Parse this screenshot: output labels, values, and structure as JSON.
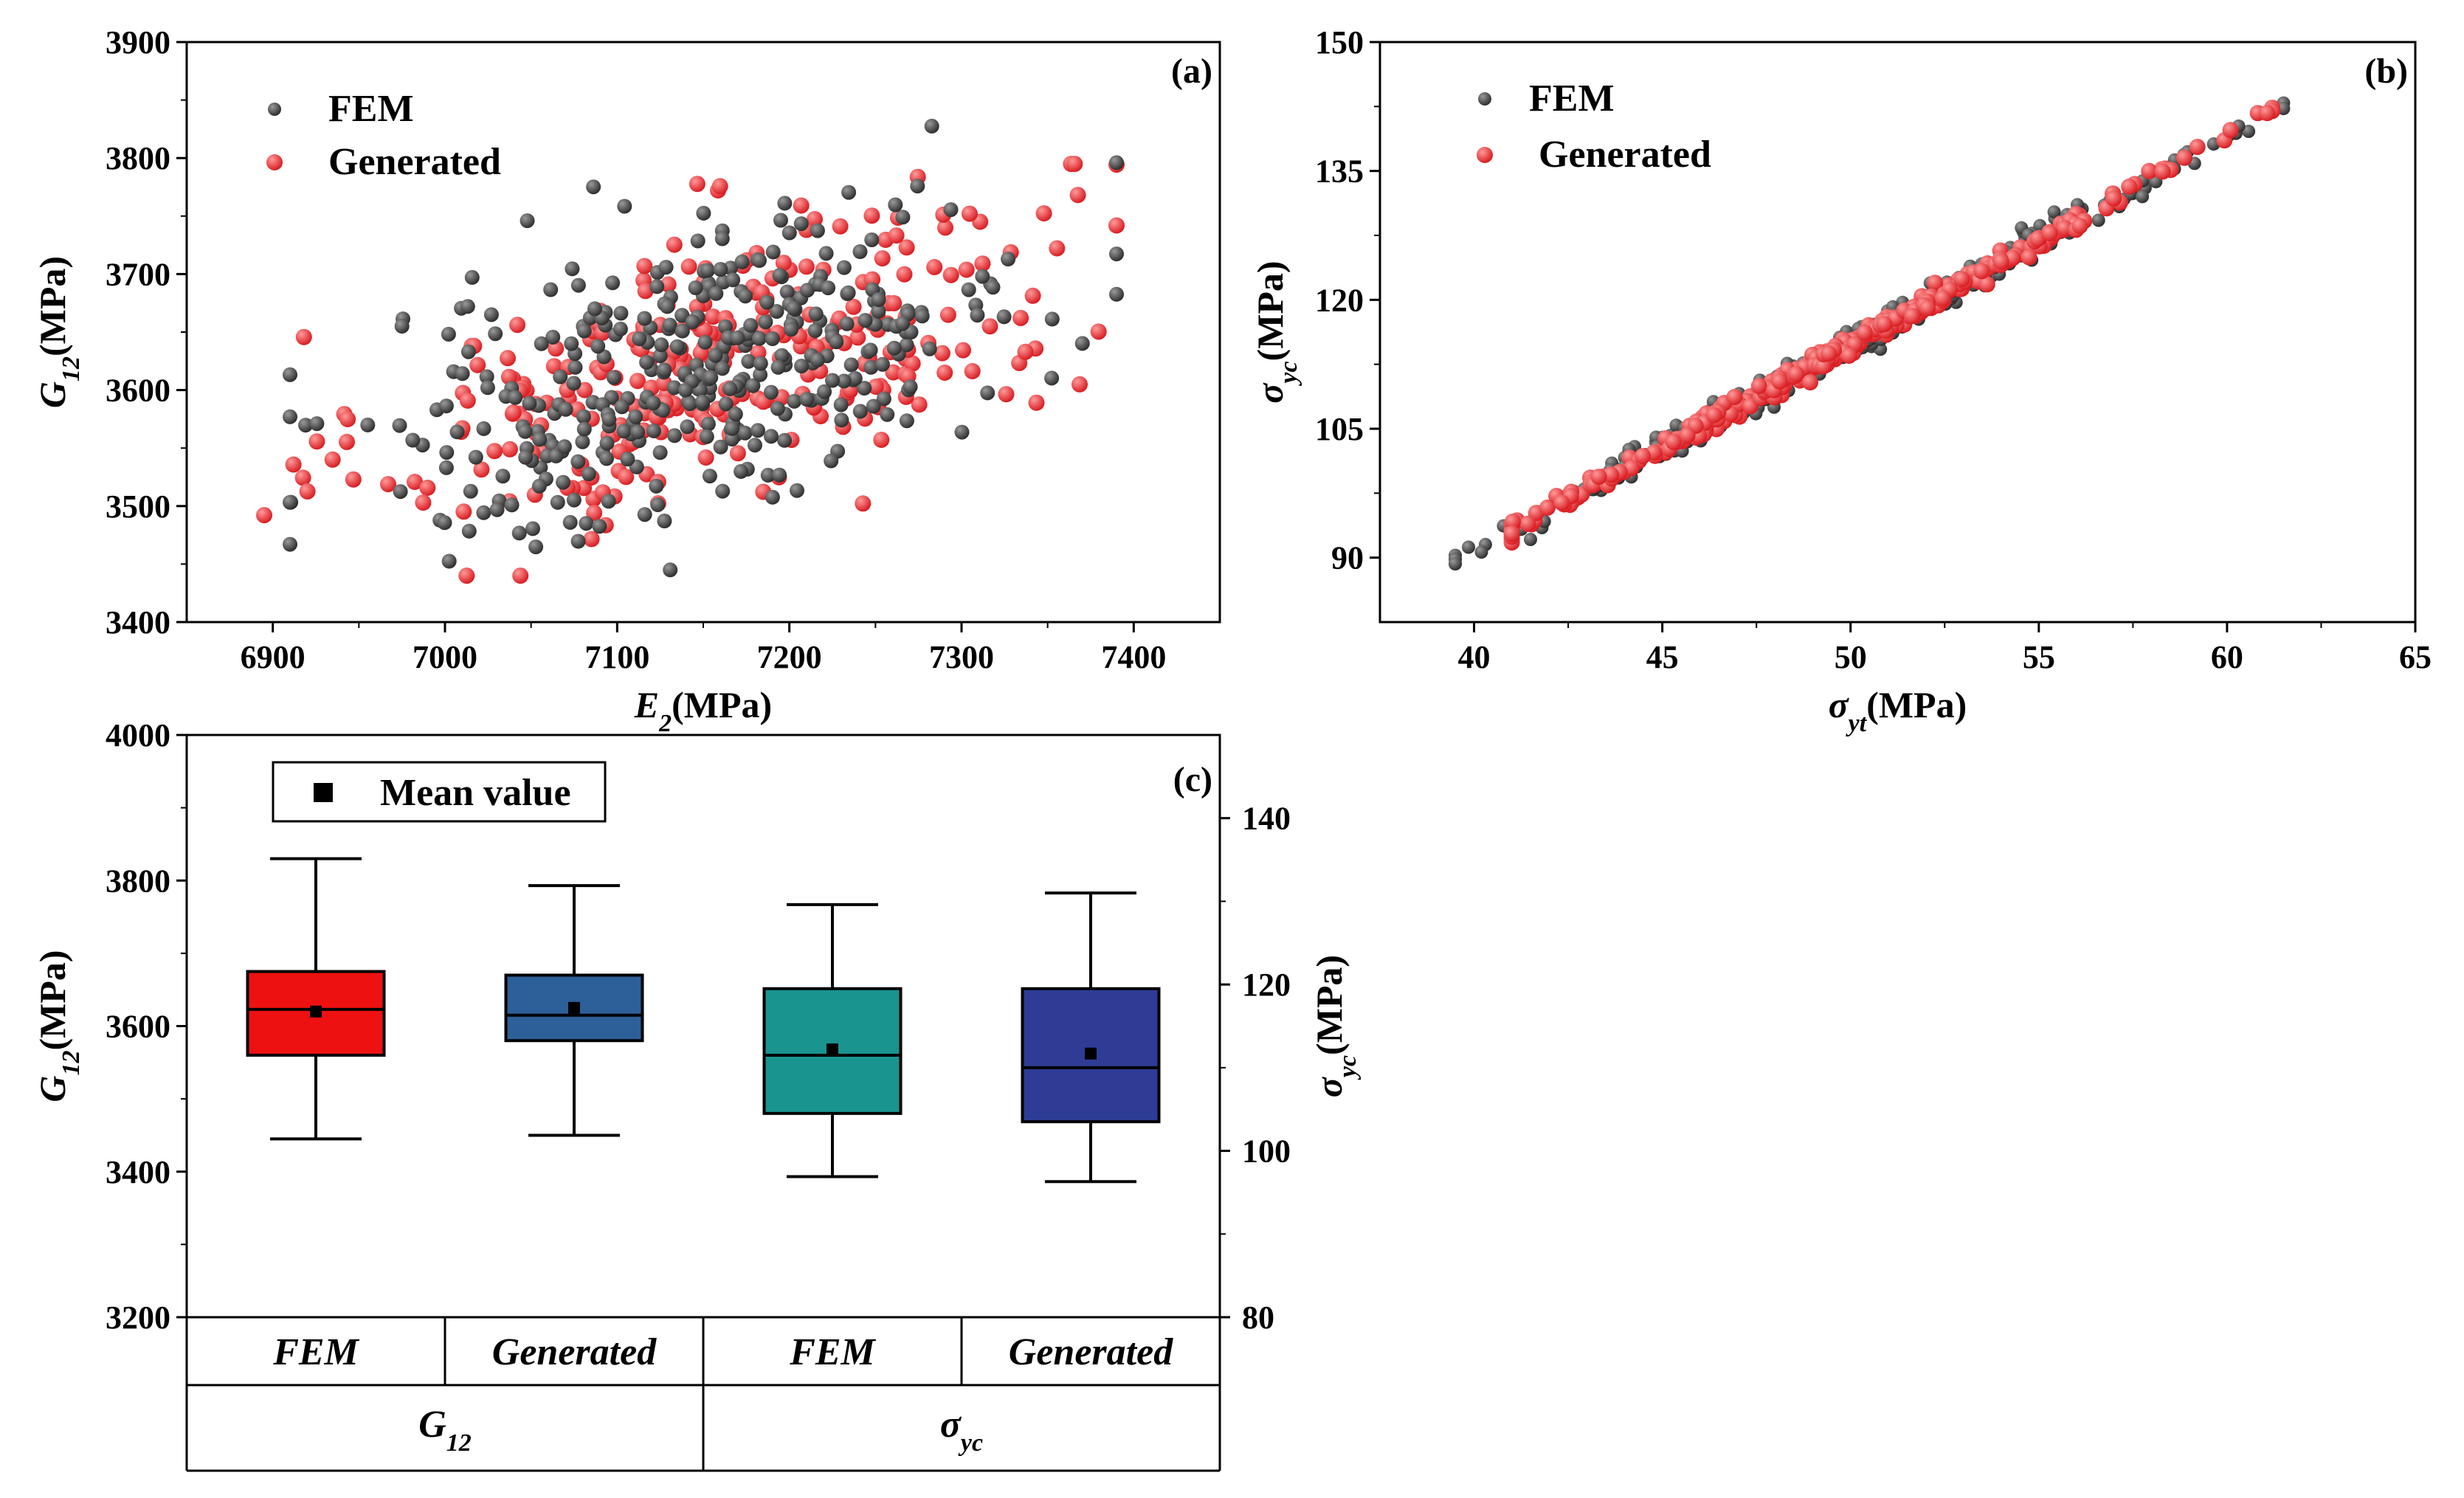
{
  "chart_data": [
    {
      "panel": "a",
      "type": "scatter",
      "tag": "(a)",
      "xlabel": {
        "main": "E",
        "sub": "2",
        "unit": "(MPa)"
      },
      "ylabel": {
        "main": "G",
        "sub": "12",
        "unit": "(MPa)"
      },
      "xlim": [
        6850,
        7450
      ],
      "ylim": [
        3400,
        3900
      ],
      "xticks": [
        6900,
        7000,
        7100,
        7200,
        7300,
        7400
      ],
      "yticks": [
        3400,
        3500,
        3600,
        3700,
        3800,
        3900
      ],
      "legend_position": "top-left",
      "series": [
        {
          "name": "FEM",
          "color": "#4d4d4d",
          "count": 380,
          "x_mean": 7150,
          "x_sd": 95,
          "y_mean": 3620,
          "y_sd": 72,
          "corr": 0.55,
          "x_range": [
            6910,
            7390
          ],
          "y_range": [
            3445,
            3830
          ]
        },
        {
          "name": "Generated",
          "color": "#e8262b",
          "count": 300,
          "x_mean": 7160,
          "x_sd": 100,
          "y_mean": 3625,
          "y_sd": 70,
          "corr": 0.55,
          "x_range": [
            6895,
            7390
          ],
          "y_range": [
            3440,
            3795
          ]
        }
      ]
    },
    {
      "panel": "b",
      "type": "scatter",
      "tag": "(b)",
      "xlabel": {
        "main": "σ",
        "sub": "yt",
        "unit": "(MPa)"
      },
      "ylabel": {
        "main": "σ",
        "sub": "yc",
        "unit": "(MPa)"
      },
      "xlim": [
        37.5,
        65
      ],
      "ylim": [
        82.5,
        150
      ],
      "xticks": [
        40,
        45,
        50,
        55,
        60,
        65
      ],
      "yticks": [
        90,
        105,
        120,
        135,
        150
      ],
      "legend_position": "top-left",
      "trend": {
        "slope": 2.42,
        "intercept": -6.2
      },
      "series": [
        {
          "name": "FEM",
          "color": "#4d4d4d",
          "count": 330,
          "x_mean": 50,
          "x_sd": 4.6,
          "residual_sd": 0.9,
          "x_range": [
            39.5,
            61.5
          ]
        },
        {
          "name": "Generated",
          "color": "#e8262b",
          "count": 360,
          "x_mean": 49.5,
          "x_sd": 4.4,
          "residual_sd": 0.6,
          "x_range": [
            41,
            61.2
          ]
        }
      ]
    },
    {
      "panel": "c",
      "type": "box",
      "tag": "(c)",
      "legend_label": "Mean value",
      "left_axis": {
        "label": {
          "main": "G",
          "sub": "12",
          "unit": "(MPa)"
        },
        "ylim": [
          3200,
          4000
        ],
        "yticks": [
          3200,
          3400,
          3600,
          3800,
          4000
        ]
      },
      "right_axis": {
        "label": {
          "main": "σ",
          "sub": "yc",
          "unit": "(MPa)"
        },
        "ylim": [
          80,
          150
        ],
        "yticks": [
          80,
          100,
          120,
          140
        ]
      },
      "groups": [
        {
          "label": "G",
          "sub": "12"
        },
        {
          "label": "σ",
          "sub": "yc"
        }
      ],
      "boxes": [
        {
          "category": "FEM",
          "axis": "left",
          "color": "#ee1111",
          "whisker_low": 3445,
          "q1": 3560,
          "median": 3623,
          "q3": 3675,
          "whisker_high": 3830,
          "mean": 3620
        },
        {
          "category": "Generated",
          "axis": "left",
          "color": "#2d5f98",
          "whisker_low": 3450,
          "q1": 3580,
          "median": 3615,
          "q3": 3670,
          "whisker_high": 3793,
          "mean": 3625
        },
        {
          "category": "FEM",
          "axis": "right",
          "color": "#1a948f",
          "whisker_low": 96.9,
          "q1": 104.5,
          "median": 111.5,
          "q3": 119.5,
          "whisker_high": 129.6,
          "mean": 112.2
        },
        {
          "category": "Generated",
          "axis": "right",
          "color": "#2e3c96",
          "whisker_low": 96.3,
          "q1": 103.5,
          "median": 110,
          "q3": 119.5,
          "whisker_high": 131,
          "mean": 111.7
        }
      ]
    }
  ]
}
